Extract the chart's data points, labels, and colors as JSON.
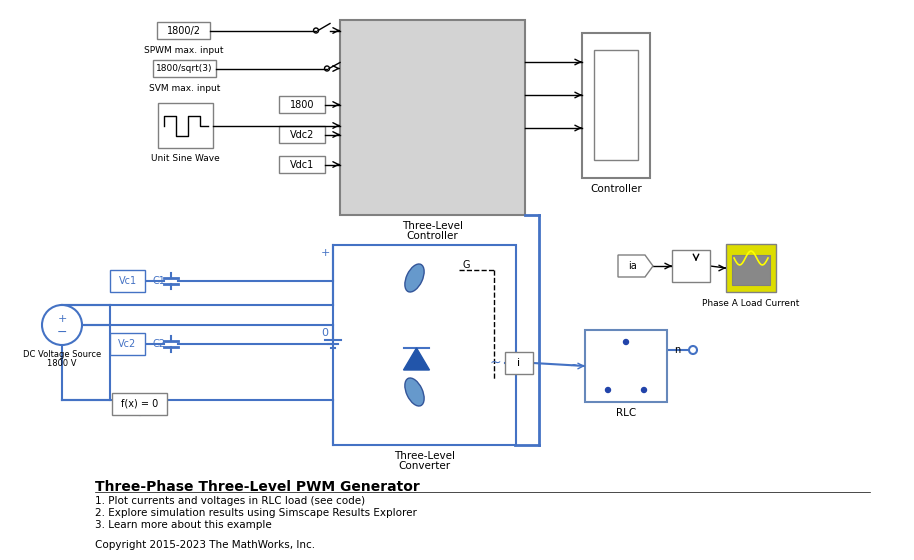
{
  "bg_color": "#ffffff",
  "title": "Three-Phase Three-Level PWM Generator",
  "subtitle_lines": [
    "1. Plot currents and voltages in RLC load (see code)",
    "2. Explore simulation results using Simscape Results Explorer",
    "3. Learn more about this example"
  ],
  "copyright": "Copyright 2015-2023 The MathWorks, Inc.",
  "blue_color": "#4472C4",
  "block_gray": "#D3D3D3",
  "block_border": "#808080",
  "line_color": "#000000"
}
